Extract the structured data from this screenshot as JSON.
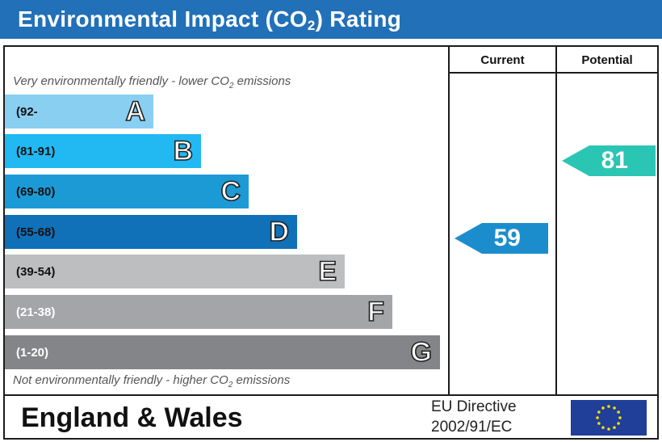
{
  "header": {
    "title_before": "Environmental Impact (CO",
    "title_sub": "2",
    "title_after": ") Rating",
    "background": "#2170b8"
  },
  "columns": {
    "current": "Current",
    "potential": "Potential"
  },
  "notes": {
    "top_before": "Very environmentally friendly - lower CO",
    "top_sub": "2",
    "top_after": " emissions",
    "bottom_before": "Not environmentally friendly - higher CO",
    "bottom_sub": "2",
    "bottom_after": " emissions"
  },
  "bands": [
    {
      "letter": "A",
      "range": "(92-",
      "color": "#88cff1",
      "range_color": "#111111"
    },
    {
      "letter": "B",
      "range": "(81-91)",
      "color": "#22b8f1",
      "range_color": "#111111"
    },
    {
      "letter": "C",
      "range": "(69-80)",
      "color": "#1c9ad6",
      "range_color": "#111111"
    },
    {
      "letter": "D",
      "range": "(55-68)",
      "color": "#1070b8",
      "range_color": "#111111"
    },
    {
      "letter": "E",
      "range": "(39-54)",
      "color": "#bcbec0",
      "range_color": "#111111"
    },
    {
      "letter": "F",
      "range": "(21-38)",
      "color": "#a3a5a8",
      "range_color": "#ffffff"
    },
    {
      "letter": "G",
      "range": "(1-20)",
      "color": "#838588",
      "range_color": "#ffffff"
    }
  ],
  "ratings": {
    "current": {
      "value": "59",
      "band": "D",
      "color": "#1c8dcc"
    },
    "potential": {
      "value": "81",
      "band": "B",
      "color": "#2bc5b4"
    }
  },
  "footer": {
    "country": "England & Wales",
    "directive_line1": "EU Directive",
    "directive_line2": "2002/91/EC",
    "flag_color": "#1f3f99",
    "star_color": "#ffdd00"
  }
}
